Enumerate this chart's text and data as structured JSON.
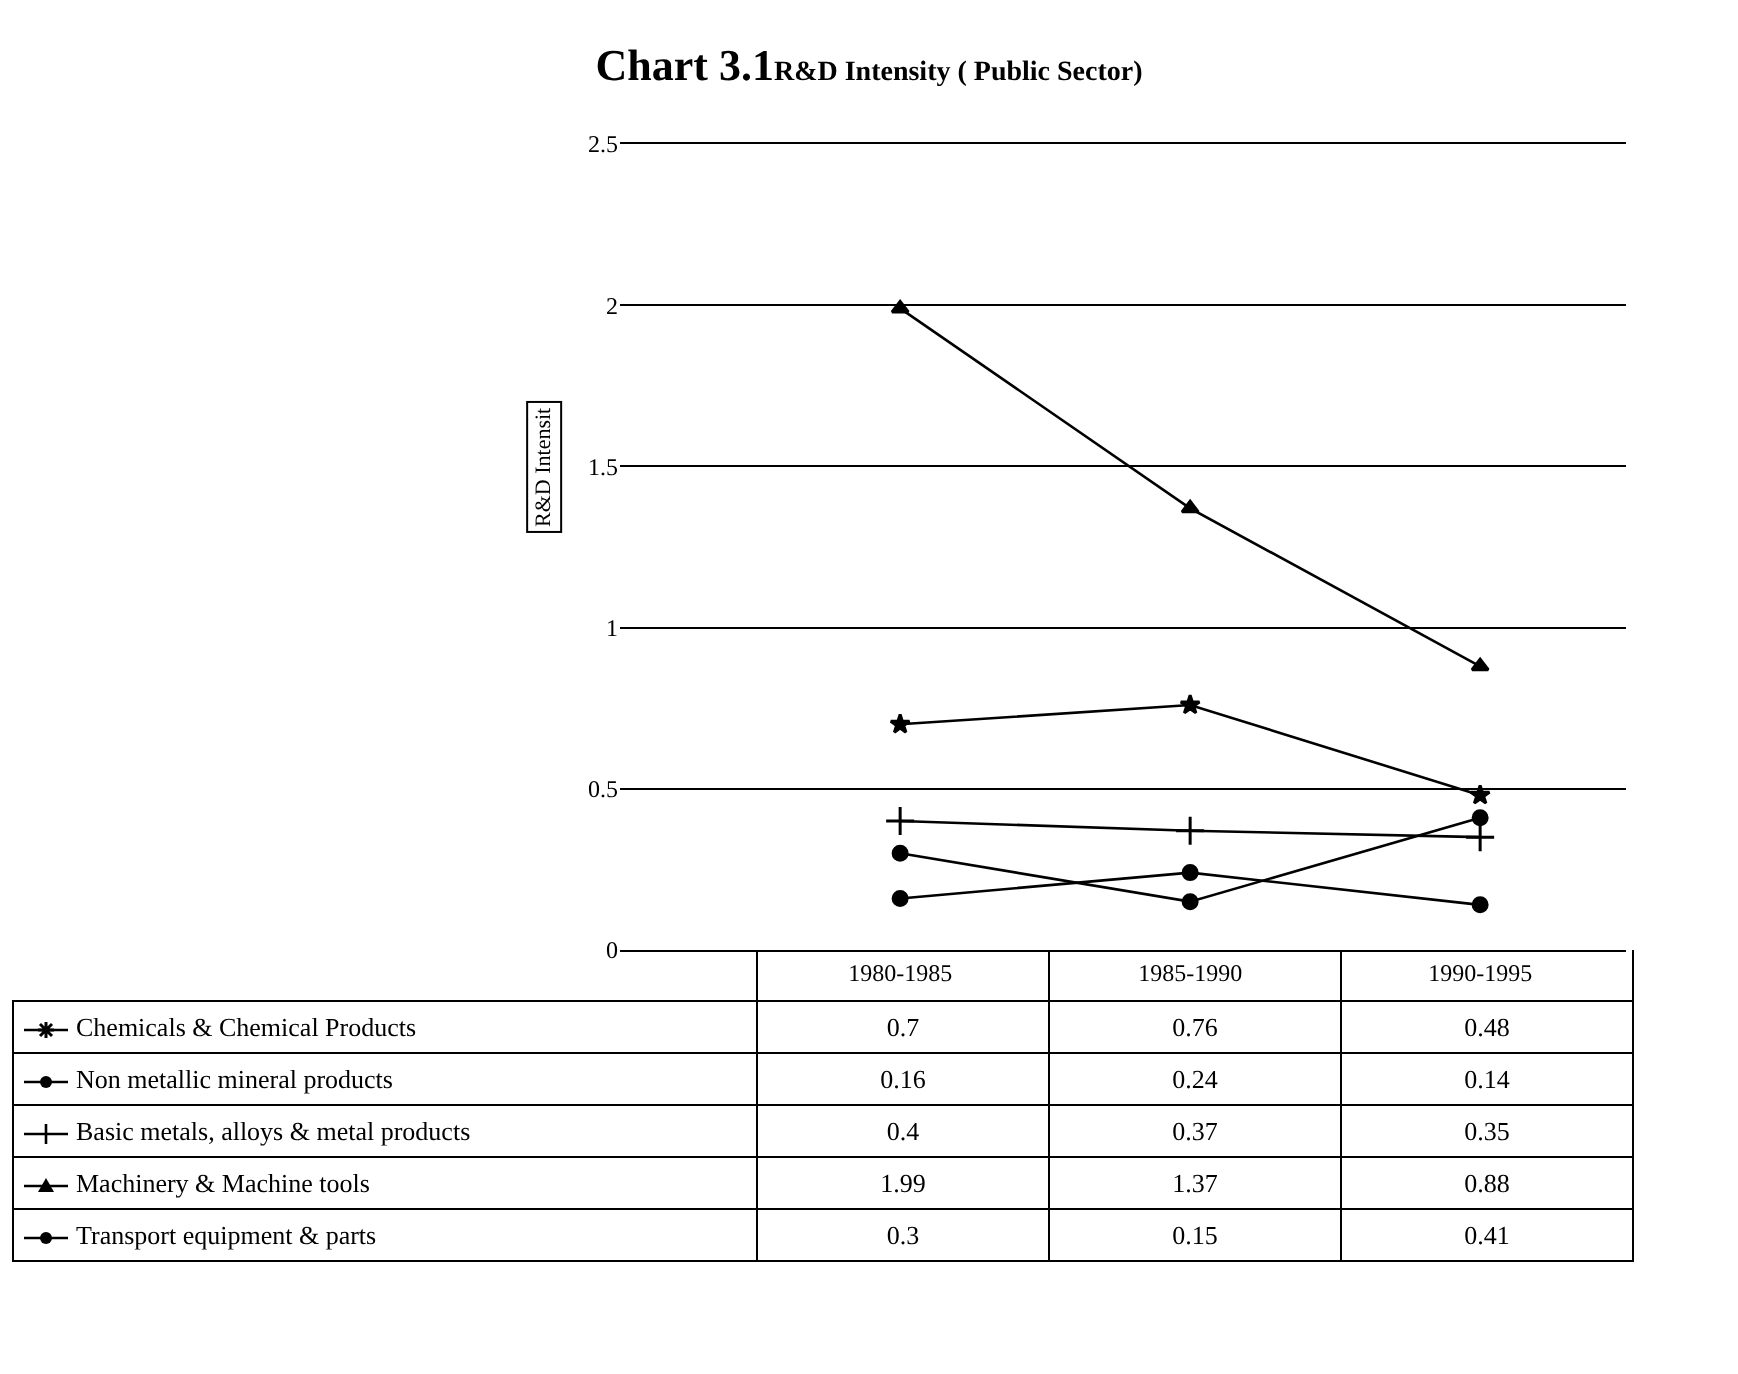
{
  "chart_data": {
    "type": "line",
    "title": "Chart 3.1",
    "subtitle": "R&D Intensity ( Public Sector)",
    "ylabel": "R&D Intensit",
    "categories": [
      "1980-1985",
      "1985-1990",
      "1990-1995"
    ],
    "ylim": [
      0,
      2.5
    ],
    "yticks": [
      0,
      0.5,
      1,
      1.5,
      2,
      2.5
    ],
    "grid": "y",
    "legend": "bottom",
    "data_labels": true,
    "line_style": "solid",
    "series": [
      {
        "name": "Chemicals & Chemical Products",
        "color": "#000000",
        "marker": "star",
        "values": [
          0.7,
          0.76,
          0.48
        ]
      },
      {
        "name": "Non metallic mineral products",
        "color": "#000000",
        "marker": "circle",
        "values": [
          0.16,
          0.24,
          0.14
        ]
      },
      {
        "name": "Basic metals, alloys & metal products",
        "color": "#000000",
        "marker": "cross",
        "values": [
          0.4,
          0.37,
          0.35
        ]
      },
      {
        "name": "Machinery & Machine tools",
        "color": "#000000",
        "marker": "triangle",
        "values": [
          1.99,
          1.37,
          0.88
        ]
      },
      {
        "name": "Transport equipment & parts",
        "color": "#000000",
        "marker": "circle",
        "values": [
          0.3,
          0.15,
          0.41
        ]
      }
    ]
  }
}
